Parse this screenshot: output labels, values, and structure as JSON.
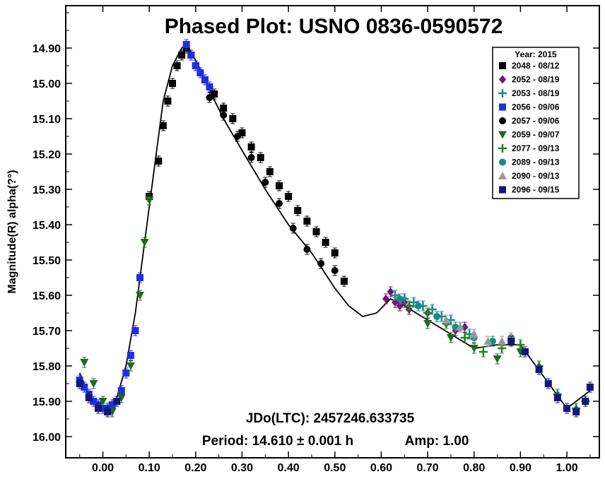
{
  "chart_data": {
    "type": "scatter",
    "title": "Phased Plot: USNO 0836-0590572",
    "ylabel": "Magnitude(R) alpha(?°)",
    "xlabel": "",
    "xlim": [
      -0.08,
      1.07
    ],
    "ylim": [
      16.06,
      14.78
    ],
    "y_inverted": true,
    "x_ticks": [
      "0.00",
      "0.10",
      "0.20",
      "0.30",
      "0.40",
      "0.50",
      "0.60",
      "0.70",
      "0.80",
      "0.90",
      "1.00"
    ],
    "x_tick_values": [
      0,
      0.1,
      0.2,
      0.3,
      0.4,
      0.5,
      0.6,
      0.7,
      0.8,
      0.9,
      1.0
    ],
    "y_ticks": [
      "14.90",
      "15.00",
      "15.10",
      "15.20",
      "15.30",
      "15.40",
      "15.50",
      "15.60",
      "15.70",
      "15.80",
      "15.90",
      "16.00"
    ],
    "y_tick_values": [
      14.9,
      15.0,
      15.1,
      15.2,
      15.3,
      15.4,
      15.5,
      15.6,
      15.7,
      15.8,
      15.9,
      16.0
    ],
    "grid": false,
    "legend": {
      "placement": "top-right",
      "header": "Year: 2015",
      "entries": [
        {
          "label": "2048 - 08/12",
          "marker": "square",
          "color": "#000000"
        },
        {
          "label": "2052 - 08/19",
          "marker": "diamond",
          "color": "#7b0f7b"
        },
        {
          "label": "2053 - 08/19",
          "marker": "plus",
          "color": "#1a8a8a"
        },
        {
          "label": "2056 - 09/06",
          "marker": "square",
          "color": "#1f2fe0"
        },
        {
          "label": "2057 - 09/06",
          "marker": "circle",
          "color": "#000000"
        },
        {
          "label": "2059 - 09/07",
          "marker": "triangle-down",
          "color": "#1e6b1e"
        },
        {
          "label": "2077 - 09/13",
          "marker": "plus",
          "color": "#1a8a1a"
        },
        {
          "label": "2089 - 09/13",
          "marker": "circle",
          "color": "#1a8a8a"
        },
        {
          "label": "2090 - 09/13",
          "marker": "triangle-up",
          "color": "#999999"
        },
        {
          "label": "2096 - 09/15",
          "marker": "square",
          "color": "#15157a"
        }
      ]
    },
    "annotations": {
      "epoch": "JDo(LTC): 2457246.633735",
      "period": "Period: 14.610 ± 0.001 h",
      "amp": "Amp: 1.00"
    },
    "fit_curve": {
      "x": [
        -0.05,
        -0.03,
        -0.01,
        0.01,
        0.03,
        0.05,
        0.07,
        0.09,
        0.11,
        0.13,
        0.15,
        0.17,
        0.18,
        0.19,
        0.21,
        0.23,
        0.26,
        0.3,
        0.35,
        0.4,
        0.45,
        0.5,
        0.53,
        0.56,
        0.59,
        0.62,
        0.65,
        0.7,
        0.75,
        0.8,
        0.85,
        0.9,
        0.95,
        1.0,
        1.05
      ],
      "y": [
        15.82,
        15.88,
        15.92,
        15.93,
        15.89,
        15.8,
        15.65,
        15.45,
        15.25,
        15.05,
        14.95,
        14.9,
        14.89,
        14.91,
        14.96,
        15.02,
        15.1,
        15.19,
        15.3,
        15.4,
        15.48,
        15.58,
        15.63,
        15.66,
        15.65,
        15.61,
        15.63,
        15.67,
        15.71,
        15.75,
        15.74,
        15.74,
        15.83,
        15.92,
        15.87
      ]
    },
    "series": [
      {
        "name": "2048 - 08/12",
        "x": [
          0.1,
          0.12,
          0.13,
          0.14,
          0.15,
          0.16,
          0.17,
          0.18,
          0.19,
          0.2,
          0.22,
          0.24,
          0.26,
          0.28,
          0.3,
          0.32,
          0.34,
          0.36,
          0.38,
          0.4,
          0.42,
          0.44,
          0.46,
          0.48,
          0.5,
          0.52
        ],
        "y": [
          15.32,
          15.22,
          15.12,
          15.05,
          15.0,
          14.95,
          14.92,
          14.9,
          14.92,
          14.95,
          14.99,
          15.03,
          15.07,
          15.1,
          15.14,
          15.18,
          15.21,
          15.25,
          15.29,
          15.32,
          15.36,
          15.39,
          15.42,
          15.45,
          15.48,
          15.56
        ]
      },
      {
        "name": "2052 - 08/19",
        "x": [
          0.61,
          0.62,
          0.63,
          0.64,
          0.65,
          0.66,
          0.68,
          0.7,
          0.72,
          0.74,
          0.76,
          0.78
        ],
        "y": [
          15.61,
          15.59,
          15.62,
          15.63,
          15.62,
          15.64,
          15.63,
          15.65,
          15.66,
          15.68,
          15.7,
          15.69
        ]
      },
      {
        "name": "2053 - 08/19",
        "x": [
          0.63,
          0.65,
          0.67,
          0.69,
          0.71,
          0.73,
          0.75,
          0.77,
          0.79
        ],
        "y": [
          15.6,
          15.61,
          15.62,
          15.63,
          15.64,
          15.66,
          15.67,
          15.69,
          15.71
        ]
      },
      {
        "name": "2056 - 09/06",
        "x": [
          -0.05,
          -0.04,
          -0.03,
          -0.02,
          -0.01,
          0.0,
          0.01,
          0.02,
          0.03,
          0.04,
          0.05,
          0.06,
          0.07,
          0.08,
          0.18,
          0.19,
          0.2,
          0.21,
          0.22,
          0.23
        ],
        "y": [
          15.84,
          15.86,
          15.88,
          15.9,
          15.91,
          15.92,
          15.92,
          15.91,
          15.9,
          15.87,
          15.82,
          15.77,
          15.7,
          15.55,
          14.89,
          14.92,
          14.95,
          14.97,
          14.99,
          15.01
        ]
      },
      {
        "name": "2057 - 09/06",
        "x": [
          0.23,
          0.26,
          0.29,
          0.32,
          0.35,
          0.38,
          0.41,
          0.44,
          0.47,
          0.5
        ],
        "y": [
          15.04,
          15.09,
          15.15,
          15.21,
          15.28,
          15.34,
          15.41,
          15.47,
          15.51,
          15.53
        ]
      },
      {
        "name": "2059 - 09/07",
        "x": [
          -0.04,
          -0.02,
          0.0,
          0.02,
          0.04,
          0.06,
          0.08,
          0.09,
          0.1,
          0.7,
          0.75,
          0.8,
          0.85,
          0.9
        ],
        "y": [
          15.79,
          15.85,
          15.9,
          15.93,
          15.89,
          15.8,
          15.6,
          15.45,
          15.33,
          15.68,
          15.72,
          15.75,
          15.78,
          15.76
        ]
      },
      {
        "name": "2077 - 09/13",
        "x": [
          0.66,
          0.7,
          0.74,
          0.78,
          0.82,
          0.86,
          0.9,
          0.94,
          0.98,
          1.02,
          1.04
        ],
        "y": [
          15.63,
          15.65,
          15.68,
          15.72,
          15.76,
          15.75,
          15.74,
          15.8,
          15.88,
          15.92,
          15.9
        ]
      },
      {
        "name": "2089 - 09/13",
        "x": [
          0.64,
          0.68,
          0.72,
          0.76,
          0.8,
          0.84,
          0.88
        ],
        "y": [
          15.61,
          15.63,
          15.66,
          15.69,
          15.72,
          15.73,
          15.72
        ]
      },
      {
        "name": "2090 - 09/13",
        "x": [
          0.74,
          0.77,
          0.8,
          0.83,
          0.86,
          0.88
        ],
        "y": [
          15.67,
          15.69,
          15.71,
          15.73,
          15.73,
          15.72
        ]
      },
      {
        "name": "2096 - 09/15",
        "x": [
          -0.05,
          -0.03,
          -0.01,
          0.01,
          0.03,
          0.88,
          0.91,
          0.94,
          0.96,
          0.98,
          1.0,
          1.02,
          1.04,
          1.05
        ],
        "y": [
          15.85,
          15.89,
          15.92,
          15.93,
          15.9,
          15.73,
          15.76,
          15.81,
          15.85,
          15.89,
          15.92,
          15.93,
          15.9,
          15.86
        ]
      }
    ]
  }
}
